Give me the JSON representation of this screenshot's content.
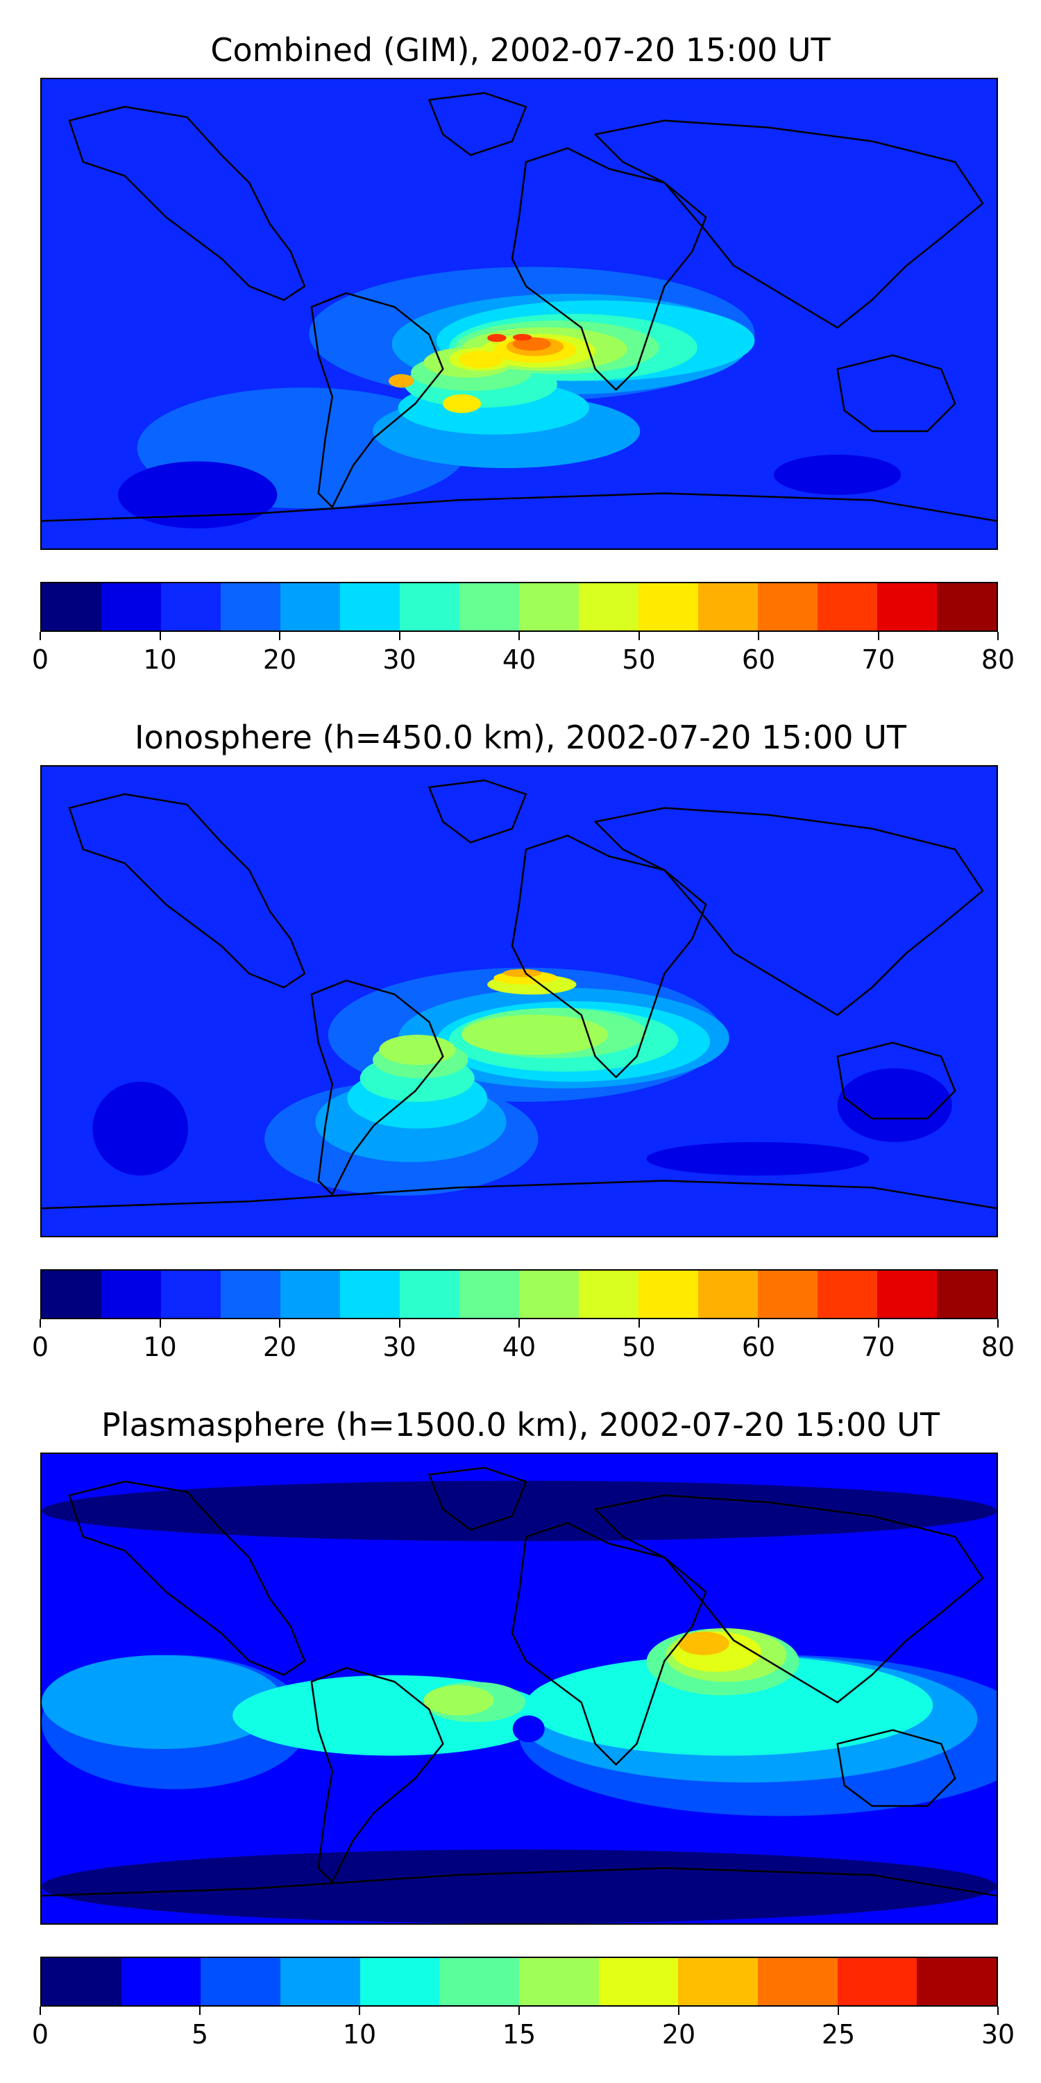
{
  "panels": [
    {
      "title": "Combined (GIM), 2002-07-20 15:00 UT",
      "colormap": [
        "#00007f",
        "#0000e6",
        "#0a28ff",
        "#0a64ff",
        "#00a0ff",
        "#00dcff",
        "#2cffcb",
        "#65ff92",
        "#a0ff57",
        "#d8ff1f",
        "#ffea00",
        "#ffb000",
        "#ff7300",
        "#ff3800",
        "#e60000",
        "#9b0000"
      ],
      "ticks": [
        0,
        10,
        20,
        30,
        40,
        50,
        60,
        70,
        80
      ],
      "range": [
        0,
        80
      ],
      "field": [
        {
          "c": "#0a28ff",
          "blobs": [
            [
              0,
              0,
              1500,
              700
            ]
          ]
        },
        {
          "c": "#0a64ff",
          "blobs": [
            [
              420,
              280,
              700,
              200
            ],
            [
              150,
              460,
              520,
              180
            ]
          ]
        },
        {
          "c": "#00a0ff",
          "blobs": [
            [
              550,
              320,
              560,
              150
            ],
            [
              520,
              470,
              420,
              110
            ]
          ]
        },
        {
          "c": "#00dcff",
          "blobs": [
            [
              620,
              330,
              500,
              120
            ],
            [
              560,
              450,
              300,
              80
            ]
          ]
        },
        {
          "c": "#2cffcb",
          "blobs": [
            [
              640,
              350,
              390,
              100
            ],
            [
              570,
              420,
              240,
              70
            ]
          ]
        },
        {
          "c": "#65ff92",
          "blobs": [
            [
              650,
              360,
              320,
              80
            ],
            [
              580,
              410,
              190,
              55
            ]
          ]
        },
        {
          "c": "#a0ff57",
          "blobs": [
            [
              660,
              370,
              260,
              65
            ],
            [
              600,
              400,
              140,
              45
            ]
          ]
        },
        {
          "c": "#d8ff1f",
          "blobs": [
            [
              690,
              380,
              180,
              50
            ],
            [
              640,
              400,
              100,
              35
            ]
          ]
        },
        {
          "c": "#ffea00",
          "blobs": [
            [
              710,
              385,
              130,
              38
            ],
            [
              655,
              405,
              70,
              26
            ],
            [
              630,
              470,
              60,
              28
            ]
          ]
        },
        {
          "c": "#ffb000",
          "blobs": [
            [
              730,
              385,
              90,
              28
            ],
            [
              545,
              440,
              40,
              20
            ]
          ]
        },
        {
          "c": "#ff7300",
          "blobs": [
            [
              740,
              385,
              60,
              20
            ]
          ]
        },
        {
          "c": "#ff3800",
          "blobs": [
            [
              700,
              380,
              30,
              12
            ],
            [
              740,
              380,
              30,
              10
            ]
          ]
        },
        {
          "c": "#0000e6",
          "blobs": [
            [
              1150,
              560,
              200,
              60
            ],
            [
              120,
              570,
              250,
              100
            ]
          ]
        }
      ]
    },
    {
      "title": "Ionosphere  (h=450.0 km), 2002-07-20 15:00 UT",
      "colormap": [
        "#00007f",
        "#0000e6",
        "#0a28ff",
        "#0a64ff",
        "#00a0ff",
        "#00dcff",
        "#2cffcb",
        "#65ff92",
        "#a0ff57",
        "#d8ff1f",
        "#ffea00",
        "#ffb000",
        "#ff7300",
        "#ff3800",
        "#e60000",
        "#9b0000"
      ],
      "ticks": [
        0,
        10,
        20,
        30,
        40,
        50,
        60,
        70,
        80
      ],
      "range": [
        0,
        80
      ],
      "field": [
        {
          "c": "#0a28ff",
          "blobs": [
            [
              0,
              0,
              1500,
              700
            ]
          ]
        },
        {
          "c": "#0a64ff",
          "blobs": [
            [
              450,
              300,
              620,
              200
            ],
            [
              350,
              470,
              430,
              170
            ]
          ]
        },
        {
          "c": "#00a0ff",
          "blobs": [
            [
              560,
              330,
              520,
              150
            ],
            [
              430,
              470,
              300,
              120
            ]
          ]
        },
        {
          "c": "#00dcff",
          "blobs": [
            [
              620,
              350,
              430,
              120
            ],
            [
              480,
              450,
              220,
              90
            ]
          ]
        },
        {
          "c": "#2cffcb",
          "blobs": [
            [
              640,
              360,
              360,
              95
            ],
            [
              500,
              430,
              180,
              70
            ]
          ]
        },
        {
          "c": "#65ff92",
          "blobs": [
            [
              660,
              360,
              290,
              75
            ],
            [
              520,
              410,
              150,
              55
            ]
          ]
        },
        {
          "c": "#a0ff57",
          "blobs": [
            [
              660,
              370,
              230,
              60
            ],
            [
              530,
              400,
              120,
              45
            ]
          ]
        },
        {
          "c": "#d8ff1f",
          "blobs": [
            [
              700,
              310,
              140,
              30
            ]
          ]
        },
        {
          "c": "#ffea00",
          "blobs": [
            [
              710,
              305,
              100,
              20
            ]
          ]
        },
        {
          "c": "#ffb000",
          "blobs": [
            [
              725,
              302,
              60,
              12
            ]
          ]
        },
        {
          "c": "#0000e6",
          "blobs": [
            [
              1250,
              450,
              180,
              110
            ],
            [
              80,
              470,
              150,
              140
            ],
            [
              950,
              560,
              350,
              50
            ]
          ]
        }
      ]
    },
    {
      "title": "Plasmasphere (h=1500.0 km), 2002-07-20 15:00 UT",
      "colormap": [
        "#00007f",
        "#0000ff",
        "#0050ff",
        "#00a0ff",
        "#10ffe5",
        "#5aff9c",
        "#a0ff56",
        "#e2ff14",
        "#ffbe00",
        "#ff7400",
        "#ff2800",
        "#a80000"
      ],
      "ticks": [
        0,
        5,
        10,
        15,
        20,
        25,
        30
      ],
      "range": [
        0,
        30
      ],
      "field": [
        {
          "c": "#0000ff",
          "blobs": [
            [
              0,
              0,
              1500,
              700
            ]
          ]
        },
        {
          "c": "#0050ff",
          "blobs": [
            [
              750,
              300,
              820,
              240
            ],
            [
              0,
              300,
              420,
              200
            ]
          ]
        },
        {
          "c": "#00a0ff",
          "blobs": [
            [
              750,
              300,
              720,
              190
            ],
            [
              0,
              300,
              380,
              140
            ]
          ]
        },
        {
          "c": "#10ffe5",
          "blobs": [
            [
              760,
              300,
              640,
              150
            ],
            [
              300,
              330,
              500,
              120
            ]
          ]
        },
        {
          "c": "#5aff9c",
          "blobs": [
            [
              950,
              260,
              240,
              100
            ],
            [
              600,
              340,
              160,
              60
            ]
          ]
        },
        {
          "c": "#a0ff56",
          "blobs": [
            [
              980,
              260,
              190,
              80
            ],
            [
              600,
              345,
              110,
              45
            ]
          ]
        },
        {
          "c": "#e2ff14",
          "blobs": [
            [
              990,
              265,
              140,
              60
            ]
          ]
        },
        {
          "c": "#ffbe00",
          "blobs": [
            [
              1000,
              265,
              80,
              35
            ]
          ]
        },
        {
          "c": "#0000ff",
          "blobs": [
            [
              740,
              390,
              50,
              40
            ]
          ]
        },
        {
          "c": "#00007f",
          "blobs": [
            [
              0,
              40,
              1500,
              90
            ],
            [
              0,
              590,
              1500,
              110
            ]
          ]
        }
      ]
    }
  ]
}
